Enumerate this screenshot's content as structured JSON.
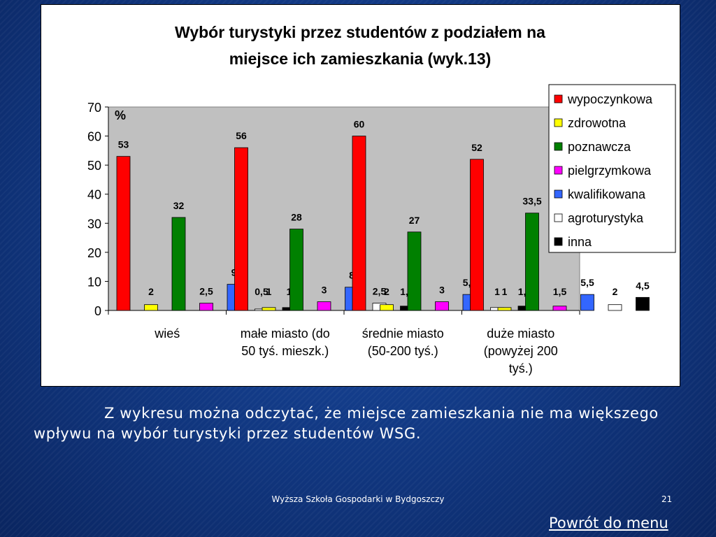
{
  "chart_data": {
    "type": "bar",
    "title_line1": "Wybór turystyki przez studentów z podziałem na",
    "title_line2": "miejsce ich zamieszkania (wyk.13)",
    "ylabel": "%",
    "ylim": [
      0,
      70
    ],
    "yticks": [
      "0",
      "10",
      "20",
      "30",
      "40",
      "50",
      "60",
      "70"
    ],
    "grid": false,
    "legend_position": "right",
    "categories": [
      [
        "wieś"
      ],
      [
        "małe miasto (do",
        "50 tyś. mieszk.)"
      ],
      [
        "średnie miasto",
        "(50-200 tyś.)"
      ],
      [
        "duże miasto",
        "(powyżej 200",
        "tyś.)"
      ]
    ],
    "series": [
      {
        "name": "wypoczynkowa",
        "color": "#ff0000",
        "values": [
          53,
          56,
          60,
          52
        ],
        "labels": [
          "53",
          "56",
          "60",
          "52"
        ]
      },
      {
        "name": "zdrowotna",
        "color": "#ffff00",
        "values": [
          2,
          1,
          2,
          1
        ],
        "labels": [
          "2",
          "1",
          "2",
          "1"
        ]
      },
      {
        "name": "poznawcza",
        "color": "#008000",
        "values": [
          32,
          28,
          27,
          33.5
        ],
        "labels": [
          "32",
          "28",
          "27",
          "33,5"
        ]
      },
      {
        "name": "pielgrzymkowa",
        "color": "#ff00ff",
        "values": [
          2.5,
          3,
          3,
          1.5
        ],
        "labels": [
          "2,5",
          "3",
          "3",
          "1,5"
        ]
      },
      {
        "name": "kwalifikowana",
        "color": "#3366ff",
        "values": [
          9,
          8,
          5.5,
          5.5
        ],
        "labels": [
          "9",
          "8",
          "5,5",
          "5,5"
        ]
      },
      {
        "name": "agroturystyka",
        "color": "#ffffff",
        "values": [
          0.5,
          2.5,
          1,
          2
        ],
        "labels": [
          "0,5",
          "2,5",
          "1",
          "2"
        ]
      },
      {
        "name": "inna",
        "color": "#000000",
        "values": [
          1,
          1.5,
          1.5,
          4.5
        ],
        "labels": [
          "1",
          "1,5",
          "1,5",
          "4,5"
        ]
      }
    ]
  },
  "caption": "Z wykresu można odczytać, że miejsce zamieszkania nie ma większego wpływu na wybór turystyki przez studentów WSG.",
  "footer": {
    "school": "Wyższa Szkoła Gospodarki w Bydgoszczy",
    "slide_number": "21"
  },
  "nav": {
    "back_link": "Powrót do menu"
  }
}
